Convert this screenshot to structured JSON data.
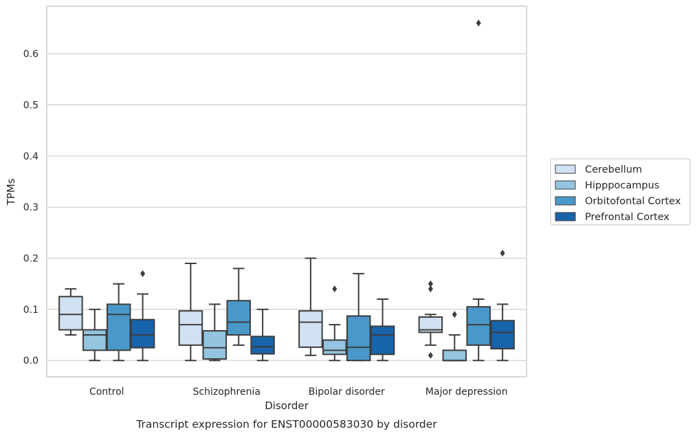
{
  "chart_data": {
    "type": "box",
    "caption": "Transcript expression for ENST00000583030 by disorder",
    "xlabel": "Disorder",
    "ylabel": "TPMs",
    "ylim": [
      -0.032,
      0.693
    ],
    "yticks": [
      "0.0",
      "0.1",
      "0.2",
      "0.3",
      "0.4",
      "0.5",
      "0.6"
    ],
    "grid": true,
    "legend_position": "right",
    "categories": [
      "Control",
      "Schizophrenia",
      "Bipolar disorder",
      "Major depression"
    ],
    "series": [
      {
        "name": "Cerebellum",
        "color": "#d0e1f2",
        "boxes": [
          {
            "whisker_low": 0.05,
            "q1": 0.06,
            "median": 0.09,
            "q3": 0.125,
            "whisker_high": 0.14,
            "outliers": []
          },
          {
            "whisker_low": 0.0,
            "q1": 0.03,
            "median": 0.07,
            "q3": 0.097,
            "whisker_high": 0.19,
            "outliers": []
          },
          {
            "whisker_low": 0.01,
            "q1": 0.026,
            "median": 0.075,
            "q3": 0.097,
            "whisker_high": 0.2,
            "outliers": []
          },
          {
            "whisker_low": 0.03,
            "q1": 0.055,
            "median": 0.06,
            "q3": 0.085,
            "whisker_high": 0.09,
            "outliers": [
              0.15,
              0.14,
              0.01
            ]
          }
        ]
      },
      {
        "name": "Hipppocampus",
        "color": "#94c4df",
        "boxes": [
          {
            "whisker_low": 0.0,
            "q1": 0.02,
            "median": 0.05,
            "q3": 0.06,
            "whisker_high": 0.1,
            "outliers": []
          },
          {
            "whisker_low": 0.0,
            "q1": 0.003,
            "median": 0.025,
            "q3": 0.058,
            "whisker_high": 0.11,
            "outliers": []
          },
          {
            "whisker_low": 0.0,
            "q1": 0.012,
            "median": 0.02,
            "q3": 0.04,
            "whisker_high": 0.07,
            "outliers": [
              0.14
            ]
          },
          {
            "whisker_low": 0.0,
            "q1": 0.0,
            "median": 0.0,
            "q3": 0.02,
            "whisker_high": 0.05,
            "outliers": [
              0.09
            ]
          }
        ]
      },
      {
        "name": "Orbitofontal Cortex",
        "color": "#4a98c9",
        "boxes": [
          {
            "whisker_low": 0.0,
            "q1": 0.02,
            "median": 0.09,
            "q3": 0.11,
            "whisker_high": 0.15,
            "outliers": []
          },
          {
            "whisker_low": 0.03,
            "q1": 0.05,
            "median": 0.075,
            "q3": 0.117,
            "whisker_high": 0.18,
            "outliers": []
          },
          {
            "whisker_low": 0.0,
            "q1": 0.0,
            "median": 0.026,
            "q3": 0.087,
            "whisker_high": 0.17,
            "outliers": []
          },
          {
            "whisker_low": 0.0,
            "q1": 0.03,
            "median": 0.07,
            "q3": 0.105,
            "whisker_high": 0.12,
            "outliers": [
              0.66
            ]
          }
        ]
      },
      {
        "name": "Prefrontal Cortex",
        "color": "#1764ab",
        "boxes": [
          {
            "whisker_low": 0.0,
            "q1": 0.025,
            "median": 0.05,
            "q3": 0.08,
            "whisker_high": 0.13,
            "outliers": [
              0.17
            ]
          },
          {
            "whisker_low": 0.0,
            "q1": 0.013,
            "median": 0.027,
            "q3": 0.047,
            "whisker_high": 0.1,
            "outliers": []
          },
          {
            "whisker_low": 0.0,
            "q1": 0.012,
            "median": 0.05,
            "q3": 0.067,
            "whisker_high": 0.12,
            "outliers": []
          },
          {
            "whisker_low": 0.0,
            "q1": 0.023,
            "median": 0.055,
            "q3": 0.078,
            "whisker_high": 0.11,
            "outliers": [
              0.21
            ]
          }
        ]
      }
    ]
  }
}
